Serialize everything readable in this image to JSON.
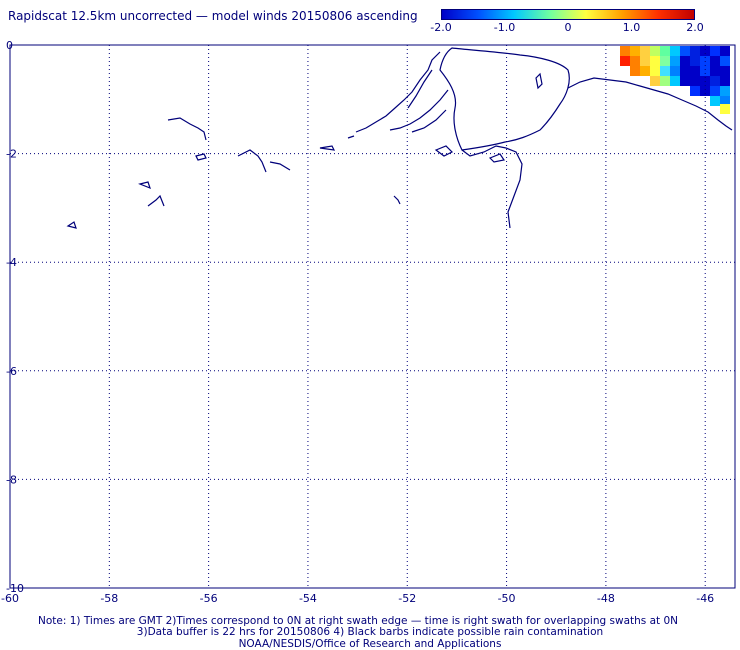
{
  "title": "Rapidscat 12.5km uncorrected — model winds 20150806 ascending",
  "colorbar": {
    "ticks": [
      "-2.0",
      "-1.0",
      "0",
      "1.0",
      "2.0"
    ],
    "tick_values": [
      -2.0,
      -1.0,
      0,
      1.0,
      2.0
    ],
    "colors": [
      "#0000c8",
      "#0050ff",
      "#00c8ff",
      "#70ffa0",
      "#ffff40",
      "#ffa000",
      "#ff3000",
      "#c00000"
    ]
  },
  "map": {
    "x_ticks": [
      "-60",
      "-58",
      "-56",
      "-54",
      "-52",
      "-50",
      "-48",
      "-46"
    ],
    "y_ticks": [
      "0",
      "-2",
      "-4",
      "-6",
      "-8",
      "-10"
    ],
    "grid": "dotted",
    "coastline_color": "#00007a"
  },
  "notes": {
    "line1": "Note: 1) Times are GMT 2)Times correspond to 0N at right swath edge — time is right swath for overlapping swaths at 0N",
    "line2": "3)Data buffer is 22 hrs for 20150806 4) Black barbs indicate possible rain contamination",
    "line3": "NOAA/NESDIS/Office of Research and Applications"
  }
}
